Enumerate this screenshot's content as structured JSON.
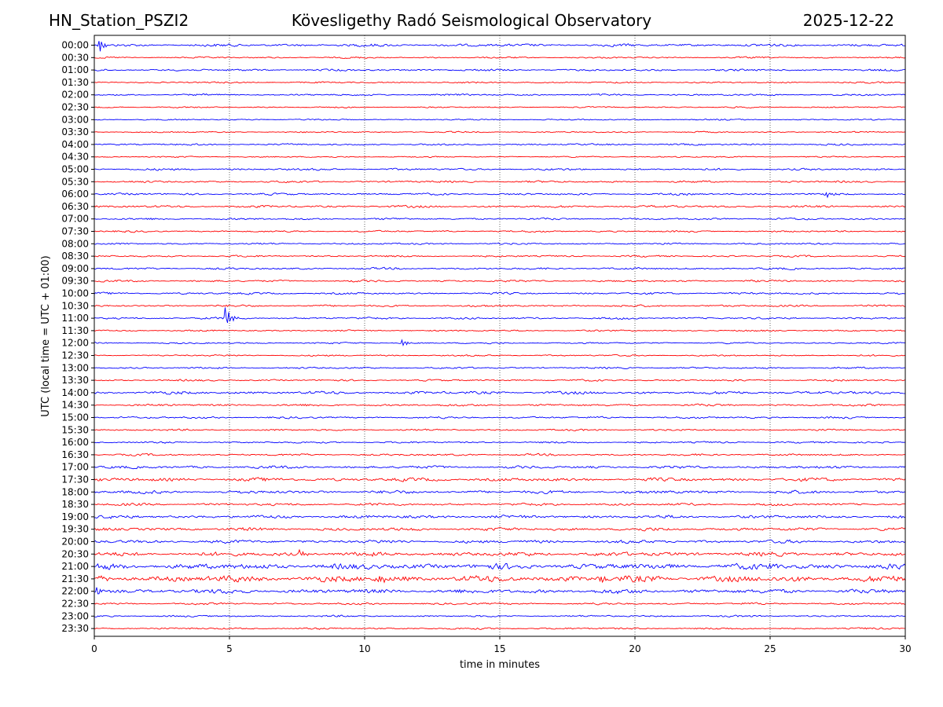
{
  "header": {
    "station": "HN_Station_PSZI2",
    "title": "Kövesligethy Radó Seismological Observatory",
    "date": "2025-12-22"
  },
  "chart_data": {
    "type": "line",
    "title": "Kövesligethy Radó Seismological Observatory",
    "xlabel": "time in minutes",
    "ylabel": "UTC (local time = UTC + 01:00)",
    "xlim": [
      0,
      30
    ],
    "x_ticks": [
      "0",
      "5",
      "10",
      "15",
      "20",
      "25",
      "30"
    ],
    "grid": "vertical dotted lines at x = 5, 10, 15, 20, 25",
    "colors": [
      "#0000ff",
      "#ff0000"
    ],
    "rows": [
      "00:00",
      "00:30",
      "01:00",
      "01:30",
      "02:00",
      "02:30",
      "03:00",
      "03:30",
      "04:00",
      "04:30",
      "05:00",
      "05:30",
      "06:00",
      "06:30",
      "07:00",
      "07:30",
      "08:00",
      "08:30",
      "09:00",
      "09:30",
      "10:00",
      "10:30",
      "11:00",
      "11:30",
      "12:00",
      "12:30",
      "13:00",
      "13:30",
      "14:00",
      "14:30",
      "15:00",
      "15:30",
      "16:00",
      "16:30",
      "17:00",
      "17:30",
      "18:00",
      "18:30",
      "19:00",
      "19:30",
      "20:00",
      "20:30",
      "21:00",
      "21:30",
      "22:00",
      "22:30",
      "23:00",
      "23:30"
    ],
    "noise_level": [
      1.2,
      0.7,
      0.9,
      0.7,
      0.8,
      0.6,
      0.6,
      0.6,
      0.8,
      0.6,
      0.9,
      0.9,
      0.9,
      1.0,
      0.9,
      0.8,
      0.8,
      0.8,
      0.9,
      0.9,
      0.9,
      0.9,
      0.9,
      0.7,
      0.7,
      0.7,
      0.8,
      0.8,
      1.3,
      1.0,
      0.9,
      0.8,
      0.8,
      0.9,
      1.2,
      1.5,
      1.4,
      1.1,
      1.4,
      1.4,
      1.4,
      1.8,
      2.5,
      2.8,
      1.9,
      0.9,
      0.8,
      0.8
    ],
    "events": [
      {
        "row": "00:00",
        "minute": 0.2,
        "amplitude": 8
      },
      {
        "row": "06:00",
        "minute": 27.1,
        "amplitude": 3
      },
      {
        "row": "11:00",
        "minute": 4.85,
        "amplitude": 16
      },
      {
        "row": "12:00",
        "minute": 11.4,
        "amplitude": 4
      },
      {
        "row": "20:30",
        "minute": 7.6,
        "amplitude": 4
      },
      {
        "row": "21:00",
        "minute": 25.0,
        "amplitude": 5
      },
      {
        "row": "21:30",
        "minute": 10.5,
        "amplitude": 6
      },
      {
        "row": "21:30",
        "minute": 18.7,
        "amplitude": 5
      },
      {
        "row": "22:00",
        "minute": 0.1,
        "amplitude": 6
      }
    ]
  }
}
